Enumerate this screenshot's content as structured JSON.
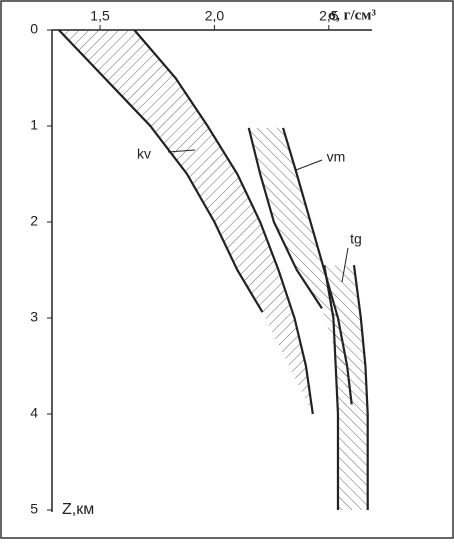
{
  "chart_data": {
    "type": "band",
    "x_label": "σ, г/см³",
    "y_label": "Z,км",
    "xlim": [
      1.29,
      2.68
    ],
    "xticks": [
      {
        "value": 1.5,
        "label": "1,5"
      },
      {
        "value": 2.0,
        "label": "2,0"
      },
      {
        "value": 2.5,
        "label": "2,5"
      }
    ],
    "ylim": [
      0,
      5
    ],
    "yticks": [
      0,
      1,
      2,
      3,
      4,
      5
    ],
    "y_inverted": true,
    "series": [
      {
        "name": "kv",
        "hatch": "/",
        "left": {
          "z": [
            0,
            0.5,
            1,
            1.5,
            2,
            2.5,
            2.94
          ],
          "x": [
            1.32,
            1.52,
            1.72,
            1.88,
            2.0,
            2.1,
            2.21
          ]
        },
        "right": {
          "z": [
            0,
            0.5,
            1,
            1.5,
            2,
            2.5,
            3,
            3.5,
            4.0
          ],
          "x": [
            1.65,
            1.83,
            1.97,
            2.1,
            2.2,
            2.28,
            2.35,
            2.4,
            2.43
          ]
        }
      },
      {
        "name": "vm",
        "hatch": "\\",
        "left": {
          "z": [
            1.02,
            1.5,
            2,
            2.5,
            2.9
          ],
          "x": [
            2.15,
            2.2,
            2.26,
            2.36,
            2.47
          ]
        },
        "right": {
          "z": [
            1.02,
            1.5,
            2,
            2.5,
            3,
            3.5,
            3.9
          ],
          "x": [
            2.3,
            2.36,
            2.42,
            2.48,
            2.54,
            2.58,
            2.6
          ]
        }
      },
      {
        "name": "tg",
        "hatch": "\\",
        "left": {
          "z": [
            2.45,
            3,
            3.5,
            4,
            4.5,
            5
          ],
          "x": [
            2.48,
            2.52,
            2.53,
            2.54,
            2.54,
            2.54
          ]
        },
        "right": {
          "z": [
            2.45,
            3,
            3.5,
            4,
            4.5,
            5
          ],
          "x": [
            2.61,
            2.64,
            2.66,
            2.67,
            2.67,
            2.67
          ]
        }
      }
    ]
  }
}
